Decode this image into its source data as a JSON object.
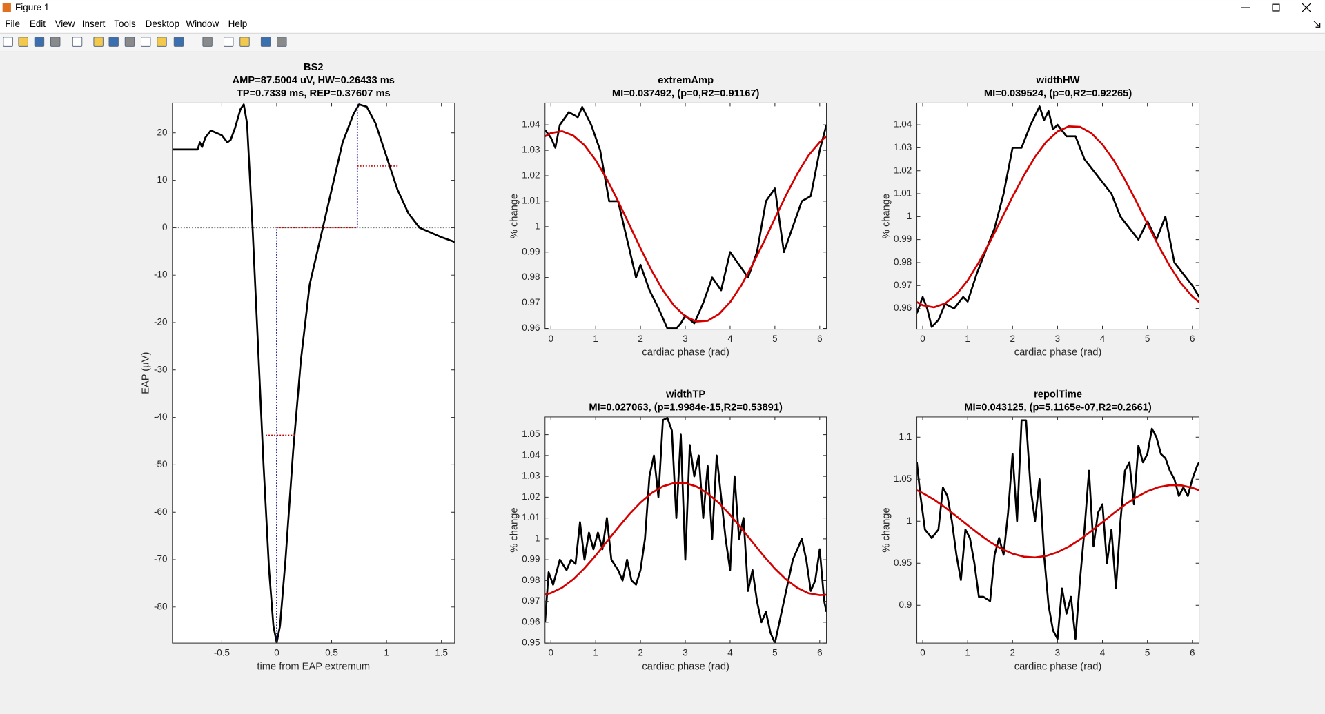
{
  "window": {
    "title": "Figure 1",
    "menu": [
      "File",
      "Edit",
      "View",
      "Insert",
      "Tools",
      "Desktop",
      "Window",
      "Help"
    ]
  },
  "chart_data": [
    {
      "type": "line",
      "title": [
        "BS2",
        "AMP=87.5004 uV,   HW=0.26433 ms",
        "TP=0.7339 ms,   REP=0.37607 ms"
      ],
      "xlabel": "time from EAP extremum",
      "ylabel": "EAP (μV)",
      "xlim": [
        -0.95,
        1.62
      ],
      "ylim": [
        -87.6,
        26.3
      ],
      "xticks": [
        -0.5,
        0,
        0.5,
        1,
        1.5
      ],
      "yticks": [
        -80,
        -70,
        -60,
        -50,
        -40,
        -30,
        -20,
        -10,
        0,
        10,
        20
      ],
      "series": [
        {
          "color": "#808080",
          "style": "dotted",
          "x": [
            -0.95,
            1.62
          ],
          "values": [
            0,
            0
          ]
        },
        {
          "color": "#000000",
          "style": "solid",
          "x": [
            -0.95,
            -0.72,
            -0.7,
            -0.68,
            -0.65,
            -0.6,
            -0.55,
            -0.5,
            -0.45,
            -0.42,
            -0.38,
            -0.33,
            -0.3,
            -0.27,
            -0.22,
            -0.17,
            -0.12,
            -0.07,
            -0.03,
            0,
            0.03,
            0.08,
            0.15,
            0.22,
            0.3,
            0.4,
            0.5,
            0.6,
            0.7,
            0.75,
            0.82,
            0.9,
            1.0,
            1.1,
            1.2,
            1.3,
            1.4,
            1.5,
            1.62
          ],
          "values": [
            16.5,
            16.5,
            18,
            17,
            19,
            20.5,
            20,
            19.5,
            18,
            18.5,
            21,
            25,
            26,
            22,
            0,
            -25,
            -50,
            -72,
            -84,
            -87.5,
            -84,
            -70,
            -47,
            -28,
            -12,
            -2,
            8,
            18,
            24,
            26,
            25.5,
            22,
            15,
            8,
            3,
            0,
            -1,
            -2,
            -3
          ]
        },
        {
          "color": "#00008b",
          "style": "dotted",
          "x": [
            0,
            0
          ],
          "values": [
            -87.5,
            0
          ]
        },
        {
          "color": "#00008b",
          "style": "dotted",
          "x": [
            0.7339,
            0.7339
          ],
          "values": [
            0,
            26.3
          ]
        },
        {
          "color": "#c00000",
          "style": "dotted",
          "x": [
            0,
            0.7339
          ],
          "values": [
            0,
            0
          ]
        },
        {
          "color": "#c00000",
          "style": "dotted",
          "x": [
            -0.1,
            0.165
          ],
          "values": [
            -43.75,
            -43.75
          ]
        },
        {
          "color": "#c00000",
          "style": "dotted",
          "x": [
            0.7339,
            1.11
          ],
          "values": [
            13,
            13
          ]
        }
      ]
    },
    {
      "type": "line",
      "title": [
        "extremAmp",
        "MI=0.037492, (p=0,R2=0.91167)"
      ],
      "xlabel": "cardiac phase (rad)",
      "ylabel": "% change",
      "xlim": [
        -0.13,
        6.15
      ],
      "ylim": [
        0.9597,
        1.0486
      ],
      "xticks": [
        0,
        1,
        2,
        3,
        4,
        5,
        6
      ],
      "yticks": [
        0.96,
        0.97,
        0.98,
        0.99,
        1,
        1.01,
        1.02,
        1.03,
        1.04
      ],
      "series": [
        {
          "color": "#000000",
          "style": "solid",
          "x": [
            -0.13,
            0.0,
            0.1,
            0.2,
            0.4,
            0.6,
            0.7,
            0.9,
            1.1,
            1.3,
            1.5,
            1.7,
            1.9,
            2.0,
            2.2,
            2.4,
            2.6,
            2.8,
            2.9,
            3.0,
            3.2,
            3.4,
            3.6,
            3.8,
            4.0,
            4.2,
            4.4,
            4.6,
            4.8,
            5.0,
            5.2,
            5.4,
            5.6,
            5.8,
            6.0,
            6.15
          ],
          "values": [
            1.038,
            1.035,
            1.031,
            1.04,
            1.045,
            1.043,
            1.047,
            1.04,
            1.03,
            1.01,
            1.01,
            0.995,
            0.98,
            0.985,
            0.975,
            0.968,
            0.96,
            0.96,
            0.962,
            0.965,
            0.962,
            0.97,
            0.98,
            0.975,
            0.99,
            0.985,
            0.98,
            0.99,
            1.01,
            1.015,
            0.99,
            1.0,
            1.01,
            1.012,
            1.03,
            1.04
          ]
        },
        {
          "color": "#d40000",
          "style": "solid",
          "x": [
            -0.13,
            0,
            0.25,
            0.5,
            0.75,
            1,
            1.25,
            1.5,
            1.75,
            2,
            2.25,
            2.5,
            2.75,
            3,
            3.25,
            3.5,
            3.75,
            4,
            4.25,
            4.5,
            4.75,
            5,
            5.25,
            5.5,
            5.75,
            6,
            6.15
          ],
          "values": [
            1.0355,
            1.0368,
            1.0375,
            1.0358,
            1.032,
            1.0261,
            1.0187,
            1.01,
            1.0008,
            0.9915,
            0.9827,
            0.975,
            0.9689,
            0.9647,
            0.9627,
            0.963,
            0.9656,
            0.9703,
            0.9769,
            0.985,
            0.9939,
            1.0033,
            1.0124,
            1.0208,
            1.028,
            1.0332,
            1.0355
          ]
        }
      ]
    },
    {
      "type": "line",
      "title": [
        "widthHW",
        "MI=0.039524, (p=0,R2=0.92265)"
      ],
      "xlabel": "cardiac phase (rad)",
      "ylabel": "% change",
      "xlim": [
        -0.13,
        6.15
      ],
      "ylim": [
        0.951,
        1.0495
      ],
      "xticks": [
        0,
        1,
        2,
        3,
        4,
        5,
        6
      ],
      "yticks": [
        0.96,
        0.97,
        0.98,
        0.99,
        1,
        1.01,
        1.02,
        1.03,
        1.04
      ],
      "series": [
        {
          "color": "#000000",
          "style": "solid",
          "x": [
            -0.13,
            0,
            0.1,
            0.2,
            0.35,
            0.5,
            0.7,
            0.9,
            1.0,
            1.2,
            1.4,
            1.6,
            1.8,
            1.9,
            2.0,
            2.2,
            2.4,
            2.6,
            2.7,
            2.8,
            2.9,
            3.0,
            3.2,
            3.4,
            3.6,
            3.8,
            4.0,
            4.2,
            4.4,
            4.6,
            4.8,
            5.0,
            5.2,
            5.4,
            5.6,
            5.8,
            6.0,
            6.15
          ],
          "values": [
            0.958,
            0.965,
            0.96,
            0.952,
            0.955,
            0.962,
            0.96,
            0.965,
            0.963,
            0.975,
            0.985,
            0.995,
            1.01,
            1.02,
            1.03,
            1.03,
            1.04,
            1.048,
            1.042,
            1.046,
            1.038,
            1.04,
            1.035,
            1.035,
            1.025,
            1.02,
            1.015,
            1.01,
            1.0,
            0.995,
            0.99,
            0.998,
            0.99,
            1.0,
            0.98,
            0.975,
            0.97,
            0.965
          ]
        },
        {
          "color": "#d40000",
          "style": "solid",
          "x": [
            -0.13,
            0,
            0.25,
            0.5,
            0.75,
            1,
            1.25,
            1.5,
            1.75,
            2,
            2.25,
            2.5,
            2.75,
            3,
            3.25,
            3.5,
            3.75,
            4,
            4.25,
            4.5,
            4.75,
            5,
            5.25,
            5.5,
            5.75,
            6,
            6.15
          ],
          "values": [
            0.9628,
            0.9614,
            0.9605,
            0.9622,
            0.9661,
            0.9722,
            0.9801,
            0.9891,
            0.9989,
            1.0087,
            1.0179,
            1.0261,
            1.0326,
            1.0371,
            1.0393,
            1.0391,
            1.0364,
            1.0314,
            1.0246,
            1.0161,
            1.0067,
            0.9969,
            0.9872,
            0.9784,
            0.9709,
            0.9652,
            0.9628
          ]
        }
      ]
    },
    {
      "type": "line",
      "title": [
        "widthTP",
        "MI=0.027063, (p=1.9984e-15,R2=0.53891)"
      ],
      "xlabel": "cardiac phase (rad)",
      "ylabel": "% change",
      "xlim": [
        -0.13,
        6.15
      ],
      "ylim": [
        0.95,
        1.0585
      ],
      "xticks": [
        0,
        1,
        2,
        3,
        4,
        5,
        6
      ],
      "yticks": [
        0.95,
        0.96,
        0.97,
        0.98,
        0.99,
        1,
        1.01,
        1.02,
        1.03,
        1.04,
        1.05
      ],
      "series": [
        {
          "color": "#000000",
          "style": "solid",
          "x": [
            -0.13,
            -0.05,
            0.05,
            0.2,
            0.35,
            0.45,
            0.55,
            0.65,
            0.75,
            0.85,
            0.95,
            1.05,
            1.15,
            1.25,
            1.35,
            1.5,
            1.6,
            1.7,
            1.8,
            1.9,
            2.0,
            2.1,
            2.2,
            2.3,
            2.4,
            2.5,
            2.6,
            2.7,
            2.8,
            2.9,
            3.0,
            3.1,
            3.2,
            3.3,
            3.4,
            3.5,
            3.6,
            3.7,
            3.8,
            3.9,
            4.0,
            4.1,
            4.2,
            4.3,
            4.4,
            4.5,
            4.6,
            4.7,
            4.8,
            4.9,
            5.0,
            5.1,
            5.2,
            5.3,
            5.4,
            5.5,
            5.6,
            5.7,
            5.8,
            5.9,
            6.0,
            6.1,
            6.15
          ],
          "values": [
            0.96,
            0.984,
            0.978,
            0.99,
            0.985,
            0.99,
            0.988,
            1.008,
            0.99,
            1.003,
            0.995,
            1.003,
            0.995,
            1.01,
            0.99,
            0.985,
            0.98,
            0.99,
            0.98,
            0.978,
            0.985,
            1.0,
            1.03,
            1.04,
            1.02,
            1.057,
            1.058,
            1.052,
            1.01,
            1.05,
            0.99,
            1.045,
            1.03,
            1.04,
            1.01,
            1.035,
            1.0,
            1.04,
            1.02,
            1.0,
            0.985,
            1.03,
            1.0,
            1.01,
            0.975,
            0.985,
            0.97,
            0.96,
            0.965,
            0.955,
            0.95,
            0.96,
            0.97,
            0.98,
            0.99,
            0.995,
            1.0,
            0.99,
            0.975,
            0.98,
            0.995,
            0.97,
            0.965
          ]
        },
        {
          "color": "#d40000",
          "style": "solid",
          "x": [
            -0.13,
            0,
            0.25,
            0.5,
            0.75,
            1,
            1.25,
            1.5,
            1.75,
            2,
            2.25,
            2.5,
            2.75,
            3,
            3.25,
            3.5,
            3.75,
            4,
            4.25,
            4.5,
            4.75,
            5,
            5.25,
            5.5,
            5.75,
            6,
            6.15
          ],
          "values": [
            0.9733,
            0.974,
            0.9766,
            0.9806,
            0.9859,
            0.992,
            0.9987,
            1.0054,
            1.0118,
            1.0174,
            1.022,
            1.0252,
            1.0268,
            1.0268,
            1.0251,
            1.0218,
            1.0172,
            1.0115,
            1.0051,
            0.9984,
            0.9918,
            0.9857,
            0.9805,
            0.9765,
            0.9739,
            0.973,
            0.9732
          ]
        }
      ]
    },
    {
      "type": "line",
      "title": [
        "repolTime",
        "MI=0.043125, (p=5.1165e-07,R2=0.2661)"
      ],
      "xlabel": "cardiac phase (rad)",
      "ylabel": "% change",
      "xlim": [
        -0.13,
        6.15
      ],
      "ylim": [
        0.855,
        1.124
      ],
      "xticks": [
        0,
        1,
        2,
        3,
        4,
        5,
        6
      ],
      "yticks": [
        0.9,
        0.95,
        1,
        1.05,
        1.1
      ],
      "series": [
        {
          "color": "#000000",
          "style": "solid",
          "x": [
            -0.13,
            -0.05,
            0.05,
            0.2,
            0.35,
            0.45,
            0.55,
            0.65,
            0.75,
            0.85,
            0.95,
            1.05,
            1.15,
            1.25,
            1.35,
            1.5,
            1.6,
            1.7,
            1.8,
            1.9,
            2.0,
            2.1,
            2.2,
            2.3,
            2.4,
            2.5,
            2.6,
            2.7,
            2.8,
            2.9,
            3.0,
            3.1,
            3.2,
            3.3,
            3.4,
            3.5,
            3.6,
            3.7,
            3.8,
            3.9,
            4.0,
            4.1,
            4.2,
            4.3,
            4.4,
            4.5,
            4.6,
            4.7,
            4.8,
            4.9,
            5.0,
            5.1,
            5.2,
            5.3,
            5.4,
            5.5,
            5.6,
            5.7,
            5.8,
            5.9,
            6.0,
            6.1,
            6.15
          ],
          "values": [
            1.07,
            1.03,
            0.99,
            0.98,
            0.99,
            1.04,
            1.03,
            1.0,
            0.96,
            0.93,
            0.99,
            0.98,
            0.95,
            0.91,
            0.91,
            0.905,
            0.96,
            0.98,
            0.96,
            1.01,
            1.08,
            1.0,
            1.12,
            1.12,
            1.04,
            1.0,
            1.05,
            0.96,
            0.9,
            0.87,
            0.86,
            0.92,
            0.89,
            0.91,
            0.86,
            0.93,
            0.99,
            1.06,
            0.97,
            1.01,
            1.02,
            0.95,
            0.99,
            0.92,
            1.0,
            1.06,
            1.07,
            1.02,
            1.09,
            1.07,
            1.08,
            1.11,
            1.1,
            1.08,
            1.075,
            1.06,
            1.05,
            1.03,
            1.04,
            1.03,
            1.05,
            1.065,
            1.07
          ]
        },
        {
          "color": "#d40000",
          "style": "solid",
          "x": [
            -0.13,
            0,
            0.25,
            0.5,
            0.75,
            1,
            1.25,
            1.5,
            1.75,
            2,
            2.25,
            2.5,
            2.75,
            3,
            3.25,
            3.5,
            3.75,
            4,
            4.25,
            4.5,
            4.75,
            5,
            5.25,
            5.5,
            5.75,
            6,
            6.15
          ],
          "values": [
            1.0368,
            1.0334,
            1.0257,
            1.0163,
            1.0059,
            0.9952,
            0.9848,
            0.9752,
            0.9672,
            0.9613,
            0.9578,
            0.9569,
            0.9587,
            0.9631,
            0.9697,
            0.9782,
            0.9881,
            0.9988,
            1.0094,
            1.0196,
            1.0284,
            1.0356,
            1.0405,
            1.0429,
            1.0426,
            1.0397,
            1.0368
          ]
        }
      ]
    }
  ]
}
